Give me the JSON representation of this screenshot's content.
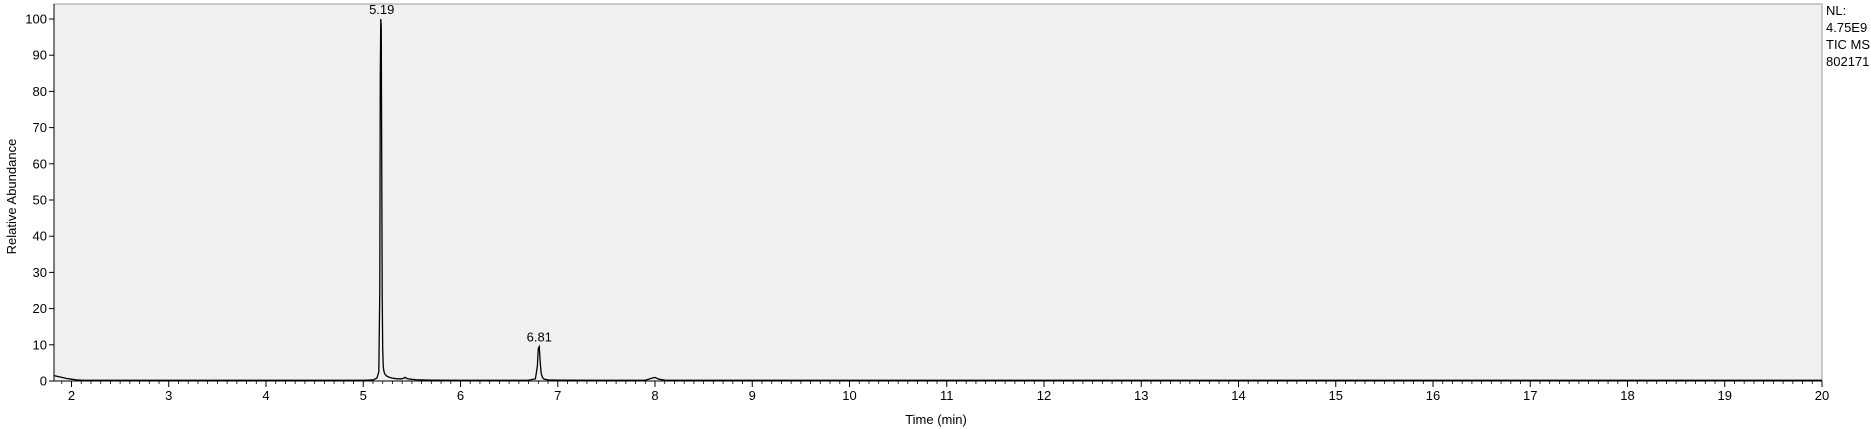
{
  "instrument_info": {
    "normalization": "NL:",
    "nl_value": "4.75E9",
    "scan_filter": "TIC  MS",
    "file_name": "802171"
  },
  "chart_data": {
    "type": "line",
    "xlabel": "Time (min)",
    "ylabel": "Relative Abundance",
    "xlim": [
      1.82,
      20
    ],
    "ylim": [
      0,
      100
    ],
    "x_ticks": [
      2,
      3,
      4,
      5,
      6,
      7,
      8,
      9,
      10,
      11,
      12,
      13,
      14,
      15,
      16,
      17,
      18,
      19,
      20
    ],
    "y_ticks": [
      0,
      10,
      20,
      30,
      40,
      50,
      60,
      70,
      80,
      90,
      100
    ],
    "plot_background": "#f0f0f0",
    "line_color": "#000000",
    "series": [
      {
        "x": [
          1.82,
          1.85,
          1.9,
          1.95,
          2.0,
          2.05,
          2.1,
          2.3,
          3.0,
          4.0,
          5.0,
          5.1,
          5.14,
          5.16,
          5.17,
          5.175,
          5.18,
          5.185,
          5.19,
          5.195,
          5.2,
          5.205,
          5.21,
          5.22,
          5.24,
          5.27,
          5.3,
          5.35,
          5.4,
          5.43,
          5.45,
          5.48,
          5.55,
          5.7,
          6.0,
          6.5,
          6.7,
          6.77,
          6.79,
          6.8,
          6.81,
          6.82,
          6.83,
          6.845,
          6.86,
          6.9,
          7.0,
          7.5,
          7.9,
          7.97,
          8.0,
          8.04,
          8.1,
          9.0,
          10.0,
          12.0,
          14.0,
          16.0,
          18.0,
          20.0
        ],
        "y": [
          1.5,
          1.3,
          1.0,
          0.7,
          0.5,
          0.3,
          0.25,
          0.2,
          0.2,
          0.2,
          0.2,
          0.3,
          0.8,
          2.5,
          25,
          84,
          100,
          98,
          60,
          23,
          9,
          4.5,
          3.0,
          2.0,
          1.4,
          1.0,
          0.8,
          0.6,
          0.6,
          1.0,
          0.7,
          0.5,
          0.35,
          0.25,
          0.2,
          0.2,
          0.25,
          0.6,
          4,
          9,
          9.5,
          5,
          2,
          0.9,
          0.5,
          0.3,
          0.25,
          0.2,
          0.2,
          0.8,
          1.0,
          0.5,
          0.25,
          0.2,
          0.2,
          0.2,
          0.2,
          0.2,
          0.2,
          0.2
        ]
      }
    ],
    "annotations": [
      {
        "x": 5.19,
        "y": 100,
        "text": "5.19"
      },
      {
        "x": 6.81,
        "y": 9.5,
        "text": "6.81"
      }
    ]
  }
}
